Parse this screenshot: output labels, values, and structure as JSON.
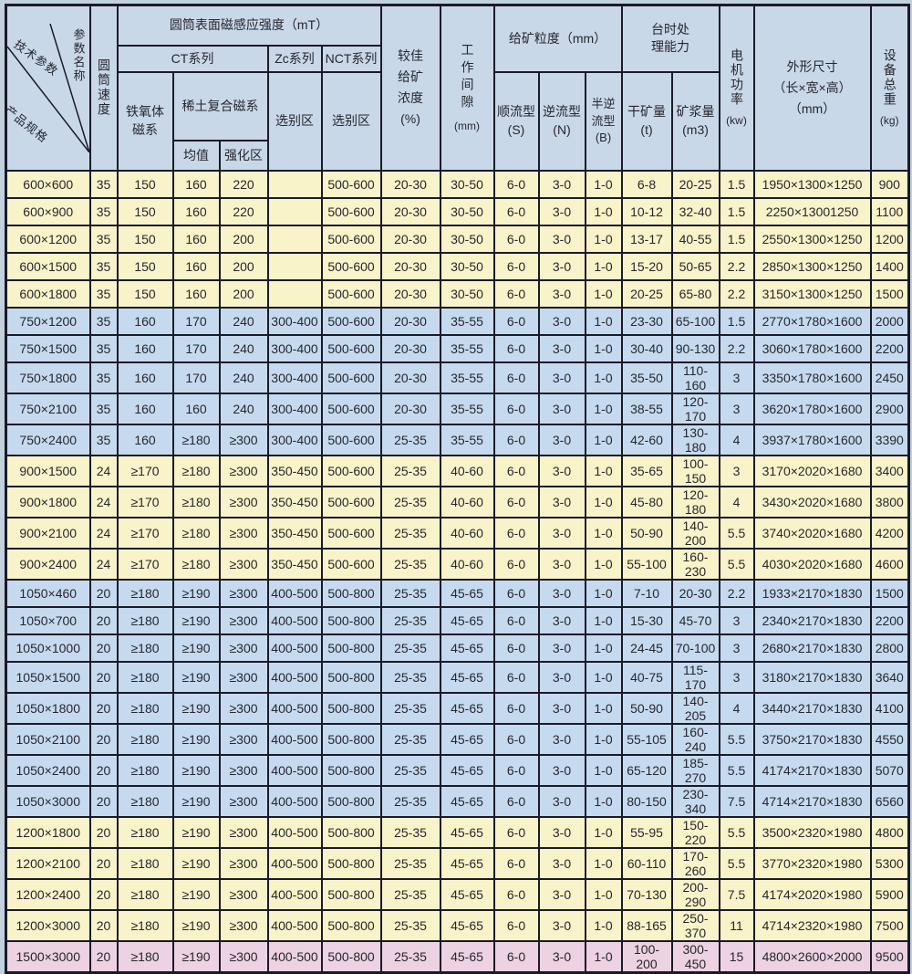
{
  "colors": {
    "header_bg": "#c9d8e9",
    "row_band_yellow": "#f9f3c9",
    "row_band_blue": "#c6daef",
    "row_band_pink": "#ecd2e2",
    "grid_border": "#1a1a28",
    "page_background": "#c3d0dd"
  },
  "header": {
    "diagonal": {
      "top": "技术参数",
      "right": "参数名称",
      "bottom": "产品规格"
    },
    "speed": {
      "label": "圆筒速度"
    },
    "magnetic": {
      "title": "圆筒表面磁感应强度（mT）",
      "ct_series": "CT系列",
      "zc_series": "Zc系列",
      "nct_series": "NCT系列",
      "ferrite": "铁氧体\n磁系",
      "rare_earth": "稀土复合磁系",
      "mean": "均值",
      "strengthened": "强化区",
      "zc_zone": "选别区",
      "nct_zone": "选别区"
    },
    "concentration": "较佳\n给矿\n浓度\n(%)",
    "gap": {
      "label": "工作间隙",
      "unit": "(mm)"
    },
    "particle": {
      "title": "给矿粒度（mm）",
      "s_type": "顺流型\n(S)",
      "n_type": "逆流型\n(N)",
      "b_type": "半逆\n流型\n(B)"
    },
    "capacity": {
      "title": "台时处\n理能力",
      "dry_ore": "干矿量\n(t)",
      "slurry": "矿浆量\n(m3)"
    },
    "power": {
      "label": "电机功率",
      "unit": "(kw)"
    },
    "dimensions": "外形尺寸\n（长×宽×高）\n（mm）",
    "weight": {
      "label": "设备总重",
      "unit": "(kg)"
    }
  },
  "table": {
    "column_keys": [
      "product",
      "speed",
      "ferrite",
      "re_mean",
      "re_strengthened",
      "zc_zone",
      "nct_zone",
      "concentration",
      "gap",
      "s_type",
      "n_type",
      "b_type",
      "dry_ore",
      "slurry",
      "power",
      "dimensions",
      "weight"
    ],
    "rows": [
      {
        "band": "yellow",
        "cells": [
          "600×600",
          "35",
          "150",
          "160",
          "220",
          "",
          "500-600",
          "20-30",
          "30-50",
          "6-0",
          "3-0",
          "1-0",
          "6-8",
          "20-25",
          "1.5",
          "1950×1300×1250",
          "900"
        ]
      },
      {
        "band": "yellow",
        "cells": [
          "600×900",
          "35",
          "150",
          "160",
          "220",
          "",
          "500-600",
          "20-30",
          "30-50",
          "6-0",
          "3-0",
          "1-0",
          "10-12",
          "32-40",
          "1.5",
          "2250×13001250",
          "1100"
        ]
      },
      {
        "band": "yellow",
        "cells": [
          "600×1200",
          "35",
          "150",
          "160",
          "200",
          "",
          "500-600",
          "20-30",
          "30-50",
          "6-0",
          "3-0",
          "1-0",
          "13-17",
          "40-55",
          "1.5",
          "2550×1300×1250",
          "1200"
        ]
      },
      {
        "band": "yellow",
        "cells": [
          "600×1500",
          "35",
          "150",
          "160",
          "200",
          "",
          "500-600",
          "20-30",
          "30-50",
          "6-0",
          "3-0",
          "1-0",
          "15-20",
          "50-65",
          "2.2",
          "2850×1300×1250",
          "1400"
        ]
      },
      {
        "band": "yellow",
        "cells": [
          "600×1800",
          "35",
          "150",
          "160",
          "200",
          "",
          "500-600",
          "20-30",
          "30-50",
          "6-0",
          "3-0",
          "1-0",
          "20-25",
          "65-80",
          "2.2",
          "3150×1300×1250",
          "1500"
        ]
      },
      {
        "band": "blue",
        "cells": [
          "750×1200",
          "35",
          "160",
          "170",
          "240",
          "300-400",
          "500-600",
          "20-30",
          "35-55",
          "6-0",
          "3-0",
          "1-0",
          "23-30",
          "65-100",
          "1.5",
          "2770×1780×1600",
          "2000"
        ]
      },
      {
        "band": "blue",
        "cells": [
          "750×1500",
          "35",
          "160",
          "170",
          "240",
          "300-400",
          "500-600",
          "20-30",
          "35-55",
          "6-0",
          "3-0",
          "1-0",
          "30-40",
          "90-130",
          "2.2",
          "3060×1780×1600",
          "2200"
        ]
      },
      {
        "band": "blue",
        "cells": [
          "750×1800",
          "35",
          "160",
          "170",
          "240",
          "300-400",
          "500-600",
          "20-30",
          "35-55",
          "6-0",
          "3-0",
          "1-0",
          "35-50",
          "110-160",
          "3",
          "3350×1780×1600",
          "2450"
        ]
      },
      {
        "band": "blue",
        "cells": [
          "750×2100",
          "35",
          "160",
          "160",
          "240",
          "300-400",
          "500-600",
          "20-30",
          "35-55",
          "6-0",
          "3-0",
          "1-0",
          "38-55",
          "120-170",
          "3",
          "3620×1780×1600",
          "2900"
        ]
      },
      {
        "band": "blue",
        "cells": [
          "750×2400",
          "35",
          "160",
          "≥180",
          "≥300",
          "300-400",
          "500-600",
          "25-35",
          "35-55",
          "6-0",
          "3-0",
          "1-0",
          "42-60",
          "130-180",
          "4",
          "3937×1780×1600",
          "3390"
        ]
      },
      {
        "band": "yellow",
        "cells": [
          "900×1500",
          "24",
          "≥170",
          "≥180",
          "≥300",
          "350-450",
          "500-600",
          "25-35",
          "40-60",
          "6-0",
          "3-0",
          "1-0",
          "35-65",
          "100-150",
          "3",
          "3170×2020×1680",
          "3400"
        ]
      },
      {
        "band": "yellow",
        "cells": [
          "900×1800",
          "24",
          "≥170",
          "≥180",
          "≥300",
          "350-450",
          "500-600",
          "25-35",
          "40-60",
          "6-0",
          "3-0",
          "1-0",
          "45-80",
          "120-180",
          "4",
          "3430×2020×1680",
          "3800"
        ]
      },
      {
        "band": "yellow",
        "cells": [
          "900×2100",
          "24",
          "≥170",
          "≥180",
          "≥300",
          "350-450",
          "500-600",
          "25-35",
          "40-60",
          "6-0",
          "3-0",
          "1-0",
          "50-90",
          "140-200",
          "5.5",
          "3740×2020×1680",
          "4200"
        ]
      },
      {
        "band": "yellow",
        "cells": [
          "900×2400",
          "24",
          "≥170",
          "≥180",
          "≥300",
          "350-450",
          "500-600",
          "25-35",
          "40-60",
          "6-0",
          "3-0",
          "1-0",
          "55-100",
          "160-230",
          "5.5",
          "4030×2020×1680",
          "4600"
        ]
      },
      {
        "band": "blue",
        "cells": [
          "1050×460",
          "20",
          "≥180",
          "≥190",
          "≥300",
          "400-500",
          "500-800",
          "25-35",
          "45-65",
          "6-0",
          "3-0",
          "1-0",
          "7-10",
          "20-30",
          "2.2",
          "1933×2170×1830",
          "1500"
        ]
      },
      {
        "band": "blue",
        "cells": [
          "1050×700",
          "20",
          "≥180",
          "≥190",
          "≥300",
          "400-500",
          "500-800",
          "25-35",
          "45-65",
          "6-0",
          "3-0",
          "1-0",
          "15-30",
          "45-70",
          "3",
          "2340×2170×1830",
          "2200"
        ]
      },
      {
        "band": "blue",
        "cells": [
          "1050×1000",
          "20",
          "≥180",
          "≥190",
          "≥300",
          "400-500",
          "500-800",
          "25-35",
          "45-65",
          "6-0",
          "3-0",
          "1-0",
          "24-45",
          "70-100",
          "3",
          "2680×2170×1830",
          "2800"
        ]
      },
      {
        "band": "blue",
        "cells": [
          "1050×1500",
          "20",
          "≥180",
          "≥190",
          "≥300",
          "400-500",
          "500-800",
          "25-35",
          "45-65",
          "6-0",
          "3-0",
          "1-0",
          "40-75",
          "115-170",
          "3",
          "3180×2170×1830",
          "3640"
        ]
      },
      {
        "band": "blue",
        "cells": [
          "1050×1800",
          "20",
          "≥180",
          "≥190",
          "≥300",
          "400-500",
          "500-800",
          "25-35",
          "45-65",
          "6-0",
          "3-0",
          "1-0",
          "50-90",
          "140-205",
          "4",
          "3440×2170×1830",
          "4100"
        ]
      },
      {
        "band": "blue",
        "cells": [
          "1050×2100",
          "20",
          "≥180",
          "≥190",
          "≥300",
          "400-500",
          "500-800",
          "25-35",
          "45-65",
          "6-0",
          "3-0",
          "1-0",
          "55-105",
          "160-240",
          "5.5",
          "3750×2170×1830",
          "4550"
        ]
      },
      {
        "band": "blue",
        "cells": [
          "1050×2400",
          "20",
          "≥180",
          "≥190",
          "≥300",
          "400-500",
          "500-800",
          "25-35",
          "45-65",
          "6-0",
          "3-0",
          "1-0",
          "65-120",
          "185-270",
          "5.5",
          "4174×2170×1830",
          "5070"
        ]
      },
      {
        "band": "blue",
        "cells": [
          "1050×3000",
          "20",
          "≥180",
          "≥190",
          "≥300",
          "400-500",
          "500-800",
          "25-35",
          "45-65",
          "6-0",
          "3-0",
          "1-0",
          "80-150",
          "230-340",
          "7.5",
          "4714×2170×1830",
          "6560"
        ]
      },
      {
        "band": "yellow",
        "cells": [
          "1200×1800",
          "20",
          "≥180",
          "≥190",
          "≥300",
          "400-500",
          "500-800",
          "25-35",
          "45-65",
          "6-0",
          "3-0",
          "1-0",
          "55-95",
          "150-220",
          "5.5",
          "3500×2320×1980",
          "4800"
        ]
      },
      {
        "band": "yellow",
        "cells": [
          "1200×2100",
          "20",
          "≥180",
          "≥190",
          "≥300",
          "400-500",
          "500-800",
          "25-35",
          "45-65",
          "6-0",
          "3-0",
          "1-0",
          "60-110",
          "170-260",
          "5.5",
          "3770×2320×1980",
          "5300"
        ]
      },
      {
        "band": "yellow",
        "cells": [
          "1200×2400",
          "20",
          "≥180",
          "≥190",
          "≥300",
          "400-500",
          "500-800",
          "25-35",
          "45-65",
          "6-0",
          "3-0",
          "1-0",
          "70-130",
          "200-290",
          "7.5",
          "4174×2020×1980",
          "5900"
        ]
      },
      {
        "band": "yellow",
        "cells": [
          "1200×3000",
          "20",
          "≥180",
          "≥190",
          "≥300",
          "400-500",
          "500-800",
          "25-35",
          "45-65",
          "6-0",
          "3-0",
          "1-0",
          "88-165",
          "250-370",
          "11",
          "4714×2320×1980",
          "7500"
        ]
      },
      {
        "band": "pink",
        "cells": [
          "1500×3000",
          "20",
          "≥180",
          "≥190",
          "≥300",
          "400-500",
          "500-800",
          "25-35",
          "45-65",
          "6-0",
          "3-0",
          "1-0",
          "100-200",
          "300-450",
          "15",
          "4800×2600×2000",
          "9500"
        ]
      }
    ]
  }
}
